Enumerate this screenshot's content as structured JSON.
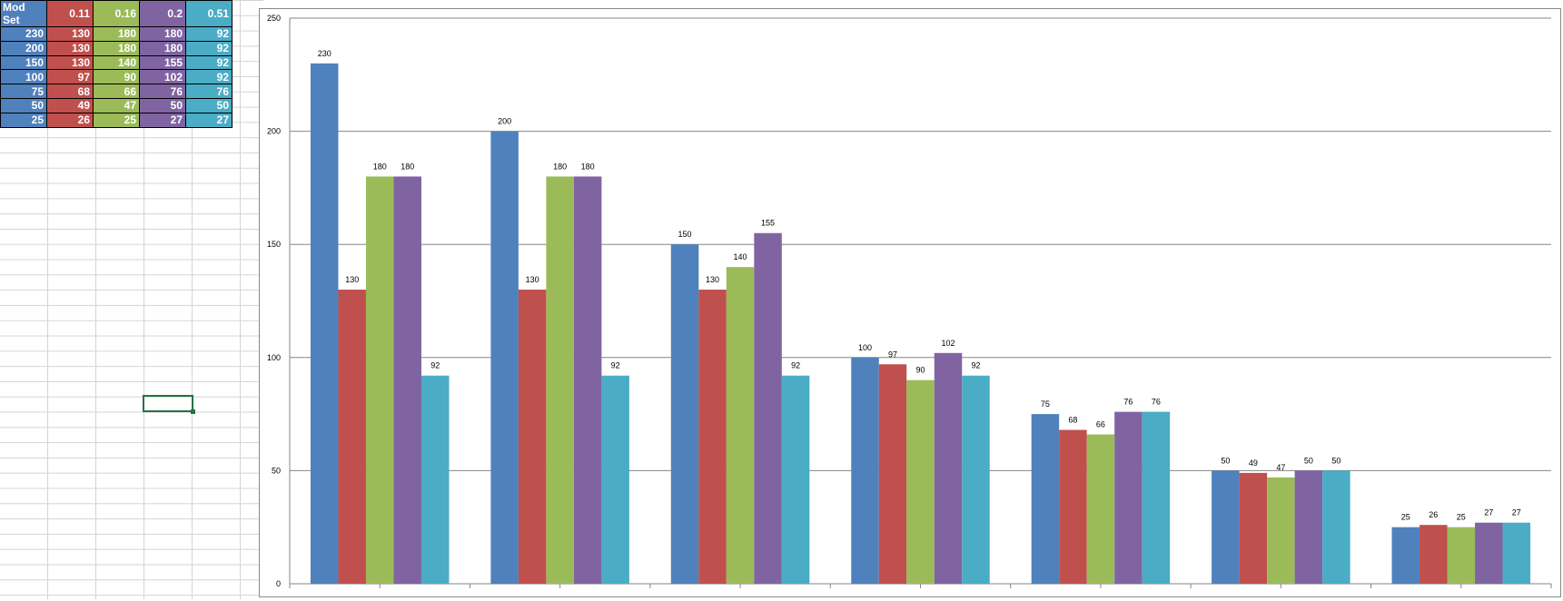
{
  "table": {
    "header": [
      "Mod Set",
      "0.11",
      "0.16",
      "0.2",
      "0.51"
    ],
    "rows": [
      [
        "230",
        "130",
        "180",
        "180",
        "92"
      ],
      [
        "200",
        "130",
        "180",
        "180",
        "92"
      ],
      [
        "150",
        "130",
        "140",
        "155",
        "92"
      ],
      [
        "100",
        "97",
        "90",
        "102",
        "92"
      ],
      [
        "75",
        "68",
        "66",
        "76",
        "76"
      ],
      [
        "50",
        "49",
        "47",
        "50",
        "50"
      ],
      [
        "25",
        "26",
        "25",
        "27",
        "27"
      ]
    ],
    "column_colors": [
      "#4f81bd",
      "#c0504d",
      "#9bbb59",
      "#8064a2",
      "#4bacc6"
    ]
  },
  "chart_data": {
    "type": "bar",
    "categories": [
      "",
      "",
      "",
      "",
      "",
      "",
      ""
    ],
    "series": [
      {
        "values": [
          230,
          200,
          150,
          100,
          75,
          50,
          25
        ],
        "color": "#4f81bd"
      },
      {
        "values": [
          130,
          130,
          130,
          97,
          68,
          49,
          26
        ],
        "color": "#c0504d"
      },
      {
        "values": [
          180,
          180,
          140,
          90,
          66,
          47,
          25
        ],
        "color": "#9bbb59"
      },
      {
        "values": [
          180,
          180,
          155,
          102,
          76,
          50,
          27
        ],
        "color": "#8064a2"
      },
      {
        "values": [
          92,
          92,
          92,
          92,
          76,
          50,
          27
        ],
        "color": "#4bacc6"
      }
    ],
    "ylim": [
      0,
      250
    ],
    "yticks": [
      0,
      50,
      100,
      150,
      200,
      250
    ],
    "grid": true,
    "data_labels": true,
    "legend": "none"
  }
}
